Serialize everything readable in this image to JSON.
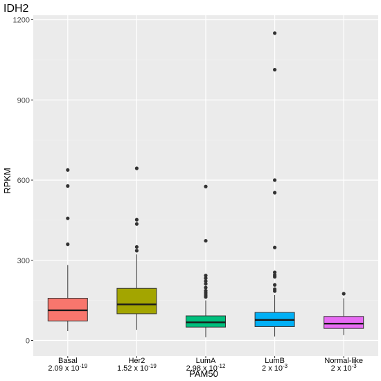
{
  "chart_data": {
    "type": "box",
    "title": "IDH2",
    "xlabel": "PAM50",
    "ylabel": "RPKM",
    "ylim": [
      0,
      1200
    ],
    "yticks": [
      0,
      300,
      600,
      900,
      1200
    ],
    "grid": true,
    "legend": "none",
    "colors": {
      "panel": "#ebebeb",
      "grid_major": "#ffffff",
      "grid_minor": "#f5f5f5",
      "outlier": "#333333",
      "box_stroke": "#333333"
    },
    "categories": [
      {
        "name": "Basal",
        "pvalue": {
          "mantissa": "2.09",
          "sep": " x ",
          "base": "10",
          "exp": "-19"
        },
        "color": "#f8766d",
        "q1": 73,
        "median": 113,
        "q3": 158,
        "whisker_low": 35,
        "whisker_high": 282,
        "outliers": [
          360,
          457,
          578,
          638
        ]
      },
      {
        "name": "Her2",
        "pvalue": {
          "mantissa": "1.52",
          "sep": " x ",
          "base": "10",
          "exp": "-19"
        },
        "color": "#a3a500",
        "q1": 100,
        "median": 135,
        "q3": 195,
        "whisker_low": 40,
        "whisker_high": 322,
        "outliers": [
          336,
          350,
          436,
          452,
          644
        ]
      },
      {
        "name": "LumA",
        "pvalue": {
          "mantissa": "2.98",
          "sep": " x ",
          "base": "10",
          "exp": "-12"
        },
        "color": "#00bf7d",
        "q1": 50,
        "median": 68,
        "q3": 92,
        "whisker_low": 12,
        "whisker_high": 150,
        "outliers": [
          163,
          170,
          178,
          186,
          198,
          212,
          222,
          233,
          243,
          373,
          576
        ]
      },
      {
        "name": "LumB",
        "pvalue": {
          "mantissa": "2",
          "sep": " x ",
          "base": "10",
          "exp": "-3"
        },
        "color": "#00b0f6",
        "q1": 52,
        "median": 77,
        "q3": 105,
        "whisker_low": 15,
        "whisker_high": 170,
        "outliers": [
          185,
          192,
          208,
          238,
          245,
          255,
          348,
          553,
          600,
          1013,
          1150
        ]
      },
      {
        "name": "Normal-like",
        "pvalue": {
          "mantissa": "2",
          "sep": " x ",
          "base": "10",
          "exp": "-3"
        },
        "color": "#e76bf3",
        "q1": 45,
        "median": 63,
        "q3": 90,
        "whisker_low": 20,
        "whisker_high": 158,
        "outliers": [
          175
        ]
      }
    ]
  }
}
